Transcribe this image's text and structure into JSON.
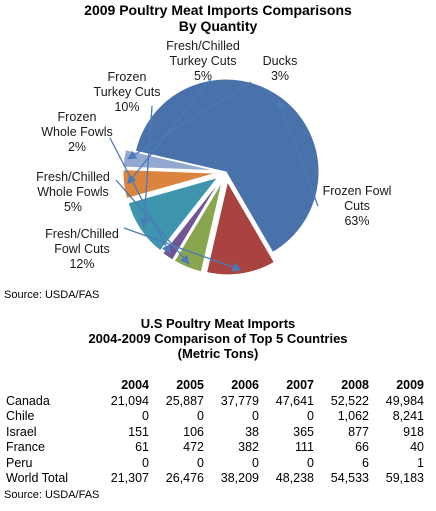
{
  "chart_data": [
    {
      "type": "pie",
      "title": "2009 Poultry Meat Imports Comparisons",
      "subtitle": "By Quantity",
      "slices": [
        {
          "label": "Frozen Fowl Cuts",
          "value": 63,
          "percent_label": "63%",
          "color": "#4a72aa"
        },
        {
          "label": "Fresh/Chilled Fowl Cuts",
          "value": 12,
          "percent_label": "12%",
          "color": "#a84340"
        },
        {
          "label": "Fresh/Chilled Whole Fowls",
          "value": 5,
          "percent_label": "5%",
          "color": "#89a54e"
        },
        {
          "label": "Frozen Whole Fowls",
          "value": 2,
          "percent_label": "2%",
          "color": "#6f5592"
        },
        {
          "label": "Frozen Turkey Cuts",
          "value": 10,
          "percent_label": "10%",
          "color": "#3d96ae"
        },
        {
          "label": "Fresh/Chilled Turkey Cuts",
          "value": 5,
          "percent_label": "5%",
          "color": "#db843d"
        },
        {
          "label": "Ducks",
          "value": 3,
          "percent_label": "3%",
          "color": "#93a9cf"
        }
      ],
      "source": "Source: USDA/FAS"
    },
    {
      "type": "table",
      "title": "U.S Poultry Meat Imports",
      "subtitle": "2004-2009 Comparison of Top 5 Countries",
      "unit": "(Metric Tons)",
      "columns": [
        "2004",
        "2005",
        "2006",
        "2007",
        "2008",
        "2009"
      ],
      "rows": [
        {
          "country": "Canada",
          "values": [
            "21,094",
            "25,887",
            "37,779",
            "47,641",
            "52,522",
            "49,984"
          ]
        },
        {
          "country": "Chile",
          "values": [
            "0",
            "0",
            "0",
            "0",
            "1,062",
            "8,241"
          ]
        },
        {
          "country": "Israel",
          "values": [
            "151",
            "106",
            "38",
            "365",
            "877",
            "918"
          ]
        },
        {
          "country": "France",
          "values": [
            "61",
            "472",
            "382",
            "111",
            "66",
            "40"
          ]
        },
        {
          "country": "Peru",
          "values": [
            "0",
            "0",
            "0",
            "0",
            "6",
            "1"
          ]
        },
        {
          "country": "World Total",
          "values": [
            "21,307",
            "26,476",
            "38,209",
            "48,238",
            "54,533",
            "59,183"
          ]
        }
      ],
      "source": "Source: USDA/FAS"
    }
  ]
}
